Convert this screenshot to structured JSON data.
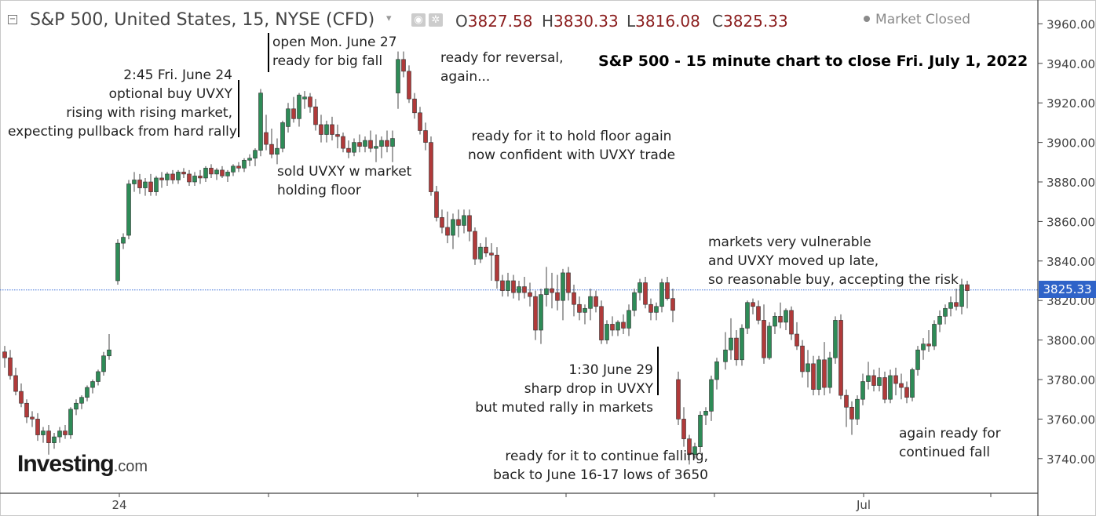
{
  "header": {
    "symbol_title": "S&P 500, United States, 15, NYSE (CFD)",
    "caret": "▾",
    "ohlc": [
      {
        "key": "O",
        "value": "3827.58"
      },
      {
        "key": "H",
        "value": "3830.33"
      },
      {
        "key": "L",
        "value": "3816.08"
      },
      {
        "key": "C",
        "value": "3825.33"
      }
    ],
    "market_status": "Market Closed",
    "icons": [
      "eye-icon",
      "gear-icon"
    ]
  },
  "price_tag": "3825.33",
  "logo": {
    "main": "Investing",
    "suffix": ".com"
  },
  "colors": {
    "up": "#2e8b57",
    "down": "#b03a3a",
    "grid": "#d6d6d6",
    "price_line": "#3a6fd8",
    "price_tag": "#2f63c8"
  },
  "annotations": {
    "title": "S&P 500 - 15 minute chart to close Fri. July 1, 2022",
    "fri_june24": [
      "2:45 Fri. June 24",
      "optional buy UVXY",
      "rising with rising market,",
      "expecting pullback from hard rally"
    ],
    "mon_june27": [
      "open Mon. June 27",
      "ready for big fall"
    ],
    "sold_uvxy": [
      "sold UVXY w market",
      "holding floor"
    ],
    "reversal": [
      "ready for reversal,",
      "again..."
    ],
    "hold_floor": [
      "ready for it to hold floor again",
      "now confident with UVXY trade"
    ],
    "june29": [
      "1:30 June 29",
      "sharp drop in UVXY",
      "but muted rally in markets"
    ],
    "vulnerable": [
      "markets very vulnerable",
      "and UVXY moved up late,",
      "so reasonable buy, accepting the risk"
    ],
    "continue_falling": [
      "ready for it to continue falling,",
      "back to June 16-17 lows of 3650"
    ],
    "again_ready": [
      "again ready for",
      "continued fall"
    ]
  },
  "chart_data": {
    "type": "candlestick",
    "title": "",
    "xlabel": "",
    "ylabel": "",
    "x_tick_labels": [
      "24",
      "Jul"
    ],
    "y_ticks": [
      3740,
      3760,
      3780,
      3800,
      3820,
      3840,
      3860,
      3880,
      3900,
      3920,
      3940,
      3960
    ],
    "ylim": [
      3730,
      3962
    ],
    "last_price": 3825.33,
    "grid": false,
    "candles": [
      [
        3794,
        3797,
        3786,
        3791
      ],
      [
        3791,
        3795,
        3780,
        3782
      ],
      [
        3782,
        3786,
        3772,
        3774
      ],
      [
        3774,
        3778,
        3766,
        3768
      ],
      [
        3768,
        3770,
        3758,
        3761
      ],
      [
        3761,
        3764,
        3756,
        3760
      ],
      [
        3760,
        3763,
        3749,
        3752
      ],
      [
        3752,
        3756,
        3748,
        3754
      ],
      [
        3754,
        3757,
        3742,
        3748
      ],
      [
        3748,
        3753,
        3745,
        3751
      ],
      [
        3751,
        3756,
        3748,
        3754
      ],
      [
        3754,
        3757,
        3750,
        3752
      ],
      [
        3752,
        3766,
        3750,
        3765
      ],
      [
        3765,
        3770,
        3762,
        3768
      ],
      [
        3768,
        3772,
        3765,
        3771
      ],
      [
        3771,
        3777,
        3769,
        3776
      ],
      [
        3776,
        3780,
        3773,
        3779
      ],
      [
        3779,
        3785,
        3777,
        3784
      ],
      [
        3784,
        3794,
        3782,
        3792
      ],
      [
        3792,
        3803,
        3790,
        3795
      ],
      [
        3830,
        3851,
        3828,
        3849
      ],
      [
        3849,
        3854,
        3846,
        3852
      ],
      [
        3853,
        3881,
        3851,
        3879
      ],
      [
        3879,
        3885,
        3875,
        3881
      ],
      [
        3881,
        3884,
        3874,
        3877
      ],
      [
        3877,
        3882,
        3873,
        3880
      ],
      [
        3880,
        3884,
        3873,
        3875
      ],
      [
        3875,
        3883,
        3873,
        3882
      ],
      [
        3882,
        3885,
        3877,
        3881
      ],
      [
        3881,
        3885,
        3878,
        3884
      ],
      [
        3884,
        3886,
        3879,
        3881
      ],
      [
        3881,
        3886,
        3879,
        3885
      ],
      [
        3885,
        3887,
        3882,
        3884
      ],
      [
        3884,
        3886,
        3878,
        3880
      ],
      [
        3880,
        3885,
        3878,
        3883
      ],
      [
        3883,
        3886,
        3879,
        3882
      ],
      [
        3882,
        3888,
        3880,
        3887
      ],
      [
        3887,
        3889,
        3882,
        3884
      ],
      [
        3884,
        3887,
        3881,
        3886
      ],
      [
        3886,
        3888,
        3882,
        3883
      ],
      [
        3883,
        3886,
        3880,
        3885
      ],
      [
        3885,
        3889,
        3883,
        3888
      ],
      [
        3888,
        3890,
        3885,
        3887
      ],
      [
        3887,
        3892,
        3885,
        3891
      ],
      [
        3891,
        3894,
        3888,
        3892
      ],
      [
        3892,
        3897,
        3888,
        3896
      ],
      [
        3896,
        3927,
        3893,
        3925
      ],
      [
        3905,
        3914,
        3896,
        3899
      ],
      [
        3899,
        3907,
        3892,
        3894
      ],
      [
        3894,
        3902,
        3889,
        3897
      ],
      [
        3897,
        3911,
        3895,
        3910
      ],
      [
        3908,
        3920,
        3905,
        3917
      ],
      [
        3917,
        3923,
        3910,
        3912
      ],
      [
        3912,
        3925,
        3908,
        3924
      ],
      [
        3922,
        3926,
        3917,
        3923
      ],
      [
        3923,
        3925,
        3915,
        3918
      ],
      [
        3918,
        3922,
        3906,
        3909
      ],
      [
        3909,
        3914,
        3900,
        3904
      ],
      [
        3904,
        3911,
        3900,
        3909
      ],
      [
        3909,
        3913,
        3901,
        3904
      ],
      [
        3904,
        3909,
        3897,
        3903
      ],
      [
        3903,
        3905,
        3895,
        3897
      ],
      [
        3897,
        3901,
        3892,
        3895
      ],
      [
        3895,
        3902,
        3893,
        3900
      ],
      [
        3900,
        3904,
        3895,
        3898
      ],
      [
        3898,
        3903,
        3895,
        3901
      ],
      [
        3901,
        3906,
        3895,
        3897
      ],
      [
        3897,
        3904,
        3890,
        3898
      ],
      [
        3898,
        3903,
        3892,
        3901
      ],
      [
        3901,
        3906,
        3895,
        3898
      ],
      [
        3898,
        3906,
        3890,
        3902
      ],
      [
        3925,
        3946,
        3917,
        3942
      ],
      [
        3942,
        3946,
        3933,
        3936
      ],
      [
        3936,
        3939,
        3920,
        3922
      ],
      [
        3922,
        3925,
        3912,
        3915
      ],
      [
        3915,
        3918,
        3904,
        3906
      ],
      [
        3906,
        3910,
        3896,
        3900
      ],
      [
        3900,
        3903,
        3873,
        3875
      ],
      [
        3875,
        3878,
        3860,
        3862
      ],
      [
        3862,
        3866,
        3854,
        3857
      ],
      [
        3857,
        3865,
        3849,
        3853
      ],
      [
        3853,
        3864,
        3846,
        3861
      ],
      [
        3861,
        3866,
        3852,
        3858
      ],
      [
        3858,
        3866,
        3854,
        3863
      ],
      [
        3863,
        3866,
        3850,
        3855
      ],
      [
        3855,
        3857,
        3838,
        3841
      ],
      [
        3841,
        3849,
        3839,
        3847
      ],
      [
        3847,
        3852,
        3842,
        3844
      ],
      [
        3844,
        3849,
        3830,
        3843
      ],
      [
        3843,
        3847,
        3826,
        3830
      ],
      [
        3830,
        3833,
        3822,
        3825
      ],
      [
        3825,
        3834,
        3822,
        3830
      ],
      [
        3830,
        3833,
        3821,
        3824
      ],
      [
        3824,
        3830,
        3820,
        3827
      ],
      [
        3827,
        3832,
        3821,
        3824
      ],
      [
        3824,
        3829,
        3817,
        3822
      ],
      [
        3822,
        3825,
        3800,
        3805
      ],
      [
        3805,
        3826,
        3798,
        3823
      ],
      [
        3823,
        3837,
        3817,
        3826
      ],
      [
        3826,
        3834,
        3816,
        3824
      ],
      [
        3824,
        3833,
        3815,
        3820
      ],
      [
        3820,
        3836,
        3810,
        3834
      ],
      [
        3834,
        3837,
        3820,
        3824
      ],
      [
        3824,
        3828,
        3812,
        3818
      ],
      [
        3818,
        3822,
        3810,
        3814
      ],
      [
        3814,
        3818,
        3808,
        3816
      ],
      [
        3816,
        3826,
        3810,
        3822
      ],
      [
        3822,
        3825,
        3814,
        3817
      ],
      [
        3817,
        3820,
        3798,
        3800
      ],
      [
        3800,
        3810,
        3798,
        3808
      ],
      [
        3808,
        3812,
        3802,
        3805
      ],
      [
        3805,
        3810,
        3802,
        3809
      ],
      [
        3809,
        3813,
        3803,
        3806
      ],
      [
        3806,
        3818,
        3802,
        3815
      ],
      [
        3815,
        3826,
        3812,
        3824
      ],
      [
        3824,
        3831,
        3820,
        3829
      ],
      [
        3829,
        3832,
        3816,
        3818
      ],
      [
        3818,
        3821,
        3810,
        3814
      ],
      [
        3814,
        3819,
        3810,
        3817
      ],
      [
        3817,
        3831,
        3814,
        3829
      ],
      [
        3829,
        3832,
        3820,
        3821
      ],
      [
        3821,
        3826,
        3809,
        3815
      ],
      [
        3780,
        3784,
        3757,
        3760
      ],
      [
        3760,
        3766,
        3746,
        3750
      ],
      [
        3750,
        3752,
        3737,
        3742
      ],
      [
        3742,
        3748,
        3740,
        3746
      ],
      [
        3746,
        3764,
        3743,
        3762
      ],
      [
        3762,
        3766,
        3757,
        3764
      ],
      [
        3764,
        3782,
        3759,
        3780
      ],
      [
        3780,
        3791,
        3775,
        3789
      ],
      [
        3789,
        3804,
        3785,
        3795
      ],
      [
        3795,
        3811,
        3790,
        3801
      ],
      [
        3801,
        3805,
        3787,
        3790
      ],
      [
        3790,
        3808,
        3787,
        3806
      ],
      [
        3806,
        3820,
        3803,
        3819
      ],
      [
        3819,
        3821,
        3813,
        3817
      ],
      [
        3817,
        3820,
        3808,
        3810
      ],
      [
        3810,
        3818,
        3788,
        3791
      ],
      [
        3791,
        3809,
        3790,
        3807
      ],
      [
        3807,
        3814,
        3803,
        3812
      ],
      [
        3812,
        3819,
        3806,
        3809
      ],
      [
        3809,
        3816,
        3805,
        3815
      ],
      [
        3815,
        3817,
        3800,
        3803
      ],
      [
        3803,
        3809,
        3795,
        3797
      ],
      [
        3797,
        3800,
        3781,
        3784
      ],
      [
        3784,
        3795,
        3776,
        3788
      ],
      [
        3788,
        3792,
        3772,
        3775
      ],
      [
        3775,
        3792,
        3772,
        3790
      ],
      [
        3790,
        3799,
        3772,
        3776
      ],
      [
        3776,
        3794,
        3773,
        3791
      ],
      [
        3791,
        3812,
        3788,
        3810
      ],
      [
        3810,
        3813,
        3770,
        3772
      ],
      [
        3772,
        3775,
        3756,
        3766
      ],
      [
        3766,
        3769,
        3752,
        3760
      ],
      [
        3760,
        3772,
        3757,
        3770
      ],
      [
        3770,
        3783,
        3767,
        3779
      ],
      [
        3779,
        3789,
        3775,
        3782
      ],
      [
        3782,
        3785,
        3774,
        3777
      ],
      [
        3777,
        3786,
        3774,
        3781
      ],
      [
        3781,
        3784,
        3768,
        3770
      ],
      [
        3770,
        3785,
        3768,
        3782
      ],
      [
        3782,
        3786,
        3772,
        3778
      ],
      [
        3778,
        3783,
        3770,
        3776
      ],
      [
        3776,
        3779,
        3768,
        3771
      ],
      [
        3771,
        3786,
        3769,
        3785
      ],
      [
        3785,
        3797,
        3782,
        3795
      ],
      [
        3795,
        3801,
        3790,
        3798
      ],
      [
        3798,
        3805,
        3794,
        3797
      ],
      [
        3797,
        3810,
        3795,
        3808
      ],
      [
        3808,
        3815,
        3804,
        3812
      ],
      [
        3812,
        3818,
        3808,
        3816
      ],
      [
        3816,
        3822,
        3812,
        3819
      ],
      [
        3819,
        3826,
        3815,
        3817
      ],
      [
        3817,
        3831,
        3813,
        3828
      ],
      [
        3828,
        3830,
        3816,
        3825
      ]
    ]
  }
}
